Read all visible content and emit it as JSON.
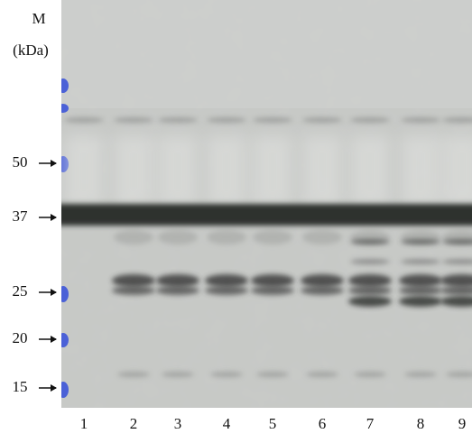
{
  "markers": {
    "header": "M",
    "unit": "(kDa)",
    "labels": [
      "50",
      "37",
      "25",
      "20",
      "15"
    ]
  },
  "lanes": [
    "1",
    "2",
    "3",
    "4",
    "5",
    "6",
    "7",
    "8",
    "9"
  ]
}
